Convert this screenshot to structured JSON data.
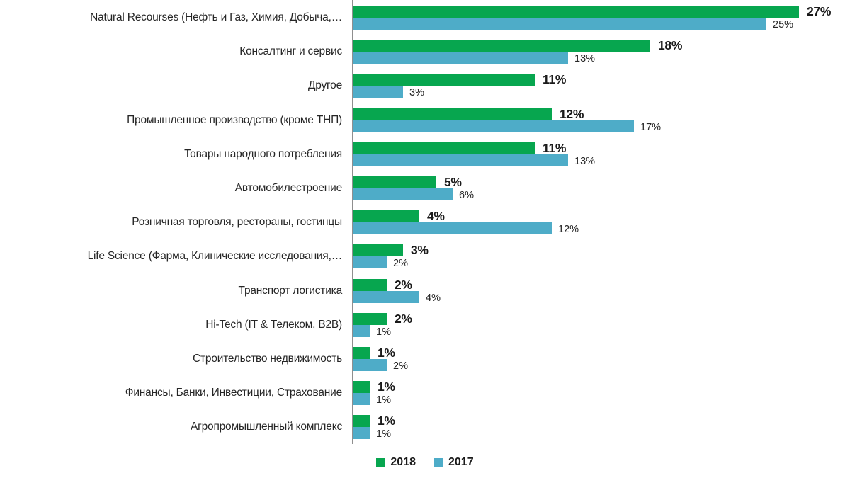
{
  "chart_data": {
    "type": "bar",
    "orientation": "horizontal",
    "title": "",
    "xlabel": "",
    "ylabel": "",
    "xlim": [
      0,
      30
    ],
    "grid": false,
    "legend_position": "bottom",
    "value_suffix": "%",
    "axis_color": "#8f8f8f",
    "categories": [
      "Natural Recourses (Нефть и Газ, Химия,  Добыча,…",
      "Консалтинг и сервис",
      "Другое",
      "Промышленное производство (кроме ТНП)",
      "Товары народного потребления",
      "Автомобилестроение",
      "Розничная торговля, рестораны, гостинцы",
      "Life Science (Фарма, Клинические исследования,…",
      "Транспорт логистика",
      "Hi-Tech (IT & Телеком, B2B)",
      "Строительство недвижимость",
      "Финансы, Банки, Инвестиции, Страхование",
      "Агропромышленный комплекс"
    ],
    "series": [
      {
        "name": "2018",
        "color": "#07a64f",
        "values": [
          27,
          18,
          11,
          12,
          11,
          5,
          4,
          3,
          2,
          2,
          1,
          1,
          1
        ]
      },
      {
        "name": "2017",
        "color": "#4eacc8",
        "values": [
          25,
          13,
          3,
          17,
          13,
          6,
          12,
          2,
          4,
          1,
          2,
          1,
          1
        ]
      }
    ]
  }
}
